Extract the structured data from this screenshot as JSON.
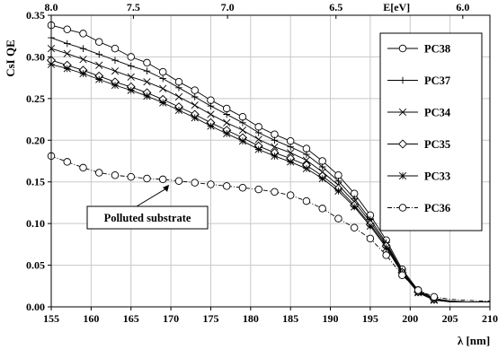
{
  "chart_data": {
    "type": "line",
    "xlabel": "λ [nm]",
    "ylabel": "CsI  QE",
    "top_axis_label": "E[eV]",
    "xlim": [
      155,
      210
    ],
    "ylim": [
      0,
      0.35
    ],
    "xticks": [
      155,
      160,
      165,
      170,
      175,
      180,
      185,
      190,
      195,
      200,
      205,
      210
    ],
    "yticks": [
      "0.00",
      "0.05",
      "0.10",
      "0.15",
      "0.20",
      "0.25",
      "0.30",
      "0.35"
    ],
    "top_ticks": [
      {
        "label": "8.0",
        "at_wavelength_nm": 155
      },
      {
        "label": "7.5",
        "at_wavelength_nm": 165.3
      },
      {
        "label": "7.0",
        "at_wavelength_nm": 177.1
      },
      {
        "label": "6.5",
        "at_wavelength_nm": 190.7
      },
      {
        "label": "6.0",
        "at_wavelength_nm": 206.6
      }
    ],
    "grid": true,
    "legend_position": "top-right",
    "annotation": {
      "text": "Polluted substrate",
      "points_to": [
        170,
        0.152
      ]
    },
    "x": [
      155,
      157,
      159,
      161,
      163,
      165,
      167,
      169,
      171,
      173,
      175,
      177,
      179,
      181,
      183,
      185,
      187,
      189,
      191,
      193,
      195,
      197,
      199,
      201,
      203,
      205,
      207,
      209,
      210
    ],
    "series": [
      {
        "name": "PC38",
        "marker": "circle",
        "dash": "solid",
        "values": [
          0.338,
          0.333,
          0.328,
          0.318,
          0.31,
          0.3,
          0.293,
          0.282,
          0.27,
          0.26,
          0.248,
          0.238,
          0.228,
          0.216,
          0.207,
          0.199,
          0.19,
          0.175,
          0.158,
          0.136,
          0.11,
          0.08,
          0.045,
          0.02,
          0.01,
          0.007,
          0.006,
          0.006,
          0.006
        ]
      },
      {
        "name": "PC37",
        "marker": "plus",
        "dash": "solid",
        "values": [
          0.323,
          0.316,
          0.31,
          0.303,
          0.296,
          0.289,
          0.283,
          0.274,
          0.263,
          0.252,
          0.241,
          0.231,
          0.221,
          0.209,
          0.2,
          0.192,
          0.183,
          0.168,
          0.151,
          0.13,
          0.105,
          0.077,
          0.043,
          0.019,
          0.009,
          0.007,
          0.006,
          0.006,
          0.006
        ]
      },
      {
        "name": "PC34",
        "marker": "x",
        "dash": "solid",
        "values": [
          0.31,
          0.304,
          0.297,
          0.29,
          0.283,
          0.276,
          0.27,
          0.262,
          0.252,
          0.242,
          0.231,
          0.221,
          0.212,
          0.201,
          0.192,
          0.185,
          0.176,
          0.162,
          0.146,
          0.126,
          0.102,
          0.075,
          0.042,
          0.018,
          0.009,
          0.006,
          0.006,
          0.006,
          0.006
        ]
      },
      {
        "name": "PC35",
        "marker": "diamond",
        "dash": "solid",
        "values": [
          0.296,
          0.29,
          0.284,
          0.277,
          0.27,
          0.264,
          0.257,
          0.249,
          0.24,
          0.231,
          0.221,
          0.212,
          0.203,
          0.193,
          0.185,
          0.178,
          0.17,
          0.157,
          0.142,
          0.122,
          0.099,
          0.073,
          0.041,
          0.018,
          0.009,
          0.006,
          0.006,
          0.006,
          0.006
        ]
      },
      {
        "name": "PC33",
        "marker": "asterisk",
        "dash": "solid",
        "values": [
          0.291,
          0.286,
          0.28,
          0.273,
          0.266,
          0.26,
          0.253,
          0.245,
          0.236,
          0.227,
          0.217,
          0.208,
          0.199,
          0.189,
          0.181,
          0.174,
          0.166,
          0.154,
          0.139,
          0.12,
          0.097,
          0.071,
          0.04,
          0.017,
          0.008,
          0.006,
          0.006,
          0.006,
          0.006
        ]
      },
      {
        "name": "PC36",
        "marker": "circle",
        "dash": "dashdot",
        "values": [
          0.181,
          0.174,
          0.167,
          0.161,
          0.158,
          0.156,
          0.154,
          0.153,
          0.151,
          0.149,
          0.147,
          0.145,
          0.143,
          0.141,
          0.138,
          0.134,
          0.127,
          0.118,
          0.106,
          0.095,
          0.082,
          0.062,
          0.038,
          0.02,
          0.012,
          0.009,
          0.008,
          0.007,
          0.007
        ]
      }
    ]
  }
}
